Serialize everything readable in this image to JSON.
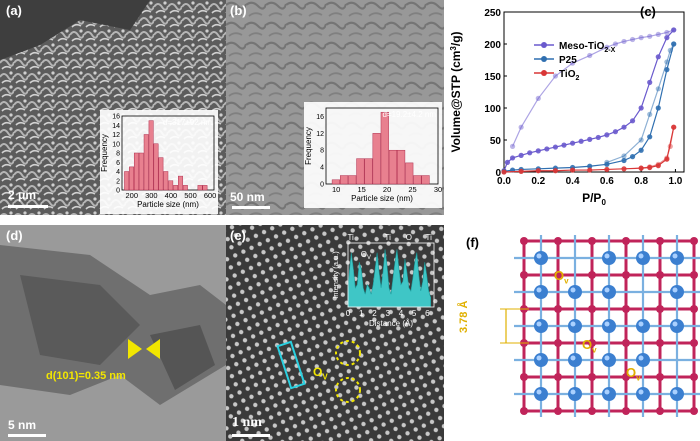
{
  "panels": {
    "a": {
      "label": "(a)",
      "scale_bar": "2 μm",
      "inset": {
        "annotation": "d=317±92 nm",
        "xlabel": "Particle size (nm)",
        "ylabel": "Frequency",
        "xticks": [
          "200",
          "300",
          "400",
          "500",
          "600"
        ],
        "yticks": [
          "0",
          "2",
          "4",
          "6",
          "8",
          "10",
          "12",
          "14",
          "16"
        ]
      }
    },
    "b": {
      "label": "(b)",
      "scale_bar": "50 nm",
      "inset": {
        "annotation": "d=19.2±4.2 nm",
        "xlabel": "Particle size (nm)",
        "ylabel": "Frequency",
        "xticks": [
          "10",
          "15",
          "20",
          "25",
          "30"
        ],
        "yticks": [
          "0",
          "4",
          "8",
          "12",
          "16"
        ]
      }
    },
    "c": {
      "label": "(c)",
      "xlabel": "P/P",
      "xlabel_sub": "0",
      "ylabel": "Volume@STP (cm",
      "ylabel_sup": "3",
      "ylabel_end": "/g)",
      "xticks": [
        "0.0",
        "0.2",
        "0.4",
        "0.6",
        "0.8",
        "1.0"
      ],
      "yticks": [
        "0",
        "50",
        "100",
        "150",
        "200",
        "250"
      ],
      "legend": [
        {
          "name": "Meso-TiO",
          "sub": "2-X",
          "color": "#6a5acd"
        },
        {
          "name": "P25",
          "sub": "",
          "color": "#2f6fb0"
        },
        {
          "name": "TiO",
          "sub": "2",
          "color": "#d93636"
        }
      ]
    },
    "d": {
      "label": "(d)",
      "scale_bar": "5 nm",
      "lattice": "d(101)=0.35 nm"
    },
    "e": {
      "label": "(e)",
      "scale_bar": "1 nm",
      "ov_label": "O",
      "ov_sub": "V",
      "inset": {
        "xlabel": "Distance (Å)",
        "ylabel": "Intensity (a.u.)",
        "xticks": [
          "0",
          "1",
          "2",
          "3",
          "4",
          "5",
          "6"
        ],
        "atoms": [
          "Ti",
          "Ti",
          "O",
          "Ti"
        ],
        "ov_label": "O",
        "ov_sub": "V"
      }
    },
    "f": {
      "label": "(f)",
      "spacing": "3.78 Å",
      "ov_label": "O",
      "ov_sub": "v"
    }
  },
  "chart_data": [
    {
      "panel": "a-inset",
      "type": "bar",
      "title": "",
      "annotation": "d=317±92 nm",
      "xlabel": "Particle size (nm)",
      "ylabel": "Frequency",
      "xlim": [
        150,
        620
      ],
      "ylim": [
        0,
        16
      ],
      "bin_width": 25,
      "x": [
        175,
        200,
        225,
        250,
        275,
        300,
        325,
        350,
        375,
        400,
        425,
        450,
        475,
        500,
        525,
        550,
        575
      ],
      "values": [
        4,
        5,
        8,
        8,
        12,
        15,
        10,
        7,
        4,
        2,
        1,
        3,
        1,
        0,
        0,
        1,
        1
      ]
    },
    {
      "panel": "b-inset",
      "type": "bar",
      "title": "",
      "annotation": "d=19.2±4.2 nm",
      "xlabel": "Particle size (nm)",
      "ylabel": "Frequency",
      "xlim": [
        8,
        30
      ],
      "ylim": [
        0,
        18
      ],
      "bin_width": 1.6,
      "x": [
        10,
        11.6,
        13.2,
        14.8,
        16.4,
        18,
        19.6,
        21.2,
        22.8,
        24.4,
        26,
        27.6
      ],
      "values": [
        1,
        2,
        2,
        6,
        6,
        12,
        17,
        8,
        8,
        5,
        2,
        2
      ]
    },
    {
      "panel": "c",
      "type": "line",
      "title": "",
      "xlabel": "P/P0",
      "ylabel": "Volume@STP (cm3/g)",
      "xlim": [
        0,
        1.05
      ],
      "ylim": [
        0,
        250
      ],
      "series": [
        {
          "name": "Meso-TiO2-X",
          "color": "#6a5acd",
          "adsorption": {
            "x": [
              0.0,
              0.02,
              0.05,
              0.1,
              0.15,
              0.2,
              0.25,
              0.3,
              0.35,
              0.4,
              0.45,
              0.5,
              0.55,
              0.6,
              0.65,
              0.7,
              0.75,
              0.8,
              0.85,
              0.9,
              0.95,
              0.99
            ],
            "y": [
              2,
              15,
              22,
              26,
              30,
              33,
              36,
              39,
              42,
              45,
              48,
              51,
              54,
              58,
              63,
              70,
              80,
              100,
              140,
              180,
              210,
              222
            ]
          },
          "desorption": {
            "x": [
              0.99,
              0.95,
              0.9,
              0.85,
              0.8,
              0.75,
              0.7,
              0.65,
              0.6,
              0.5,
              0.4,
              0.3,
              0.2,
              0.1,
              0.05
            ],
            "y": [
              222,
              218,
              215,
              212,
              210,
              207,
              204,
              200,
              195,
              182,
              170,
              150,
              115,
              70,
              40
            ]
          }
        },
        {
          "name": "P25",
          "color": "#2f6fb0",
          "adsorption": {
            "x": [
              0.0,
              0.05,
              0.1,
              0.2,
              0.3,
              0.4,
              0.5,
              0.6,
              0.7,
              0.75,
              0.8,
              0.85,
              0.9,
              0.95,
              0.99
            ],
            "y": [
              1,
              3,
              4,
              5,
              6,
              7,
              9,
              12,
              18,
              24,
              34,
              55,
              100,
              160,
              200
            ]
          },
          "desorption": {
            "x": [
              0.99,
              0.97,
              0.95,
              0.9,
              0.85,
              0.8,
              0.7,
              0.6
            ],
            "y": [
              200,
              190,
              172,
              130,
              90,
              50,
              25,
              15
            ]
          }
        },
        {
          "name": "TiO2",
          "color": "#d93636",
          "adsorption": {
            "x": [
              0.0,
              0.1,
              0.2,
              0.3,
              0.4,
              0.5,
              0.6,
              0.7,
              0.8,
              0.85,
              0.9,
              0.95,
              0.99
            ],
            "y": [
              0,
              1,
              2,
              2,
              3,
              3,
              4,
              5,
              6,
              7,
              10,
              20,
              70
            ]
          },
          "desorption": {
            "x": [
              0.99,
              0.97,
              0.95,
              0.9,
              0.85,
              0.8
            ],
            "y": [
              70,
              40,
              22,
              12,
              8,
              6
            ]
          }
        }
      ]
    },
    {
      "panel": "e-inset",
      "type": "area",
      "title": "",
      "xlabel": "Distance (Å)",
      "ylabel": "Intensity (a.u.)",
      "xlim": [
        0,
        6.5
      ],
      "ylim": [
        0,
        1
      ],
      "x": [
        0,
        0.1,
        0.25,
        0.4,
        0.55,
        0.7,
        0.85,
        1.0,
        1.15,
        1.3,
        1.45,
        1.6,
        1.75,
        1.9,
        2.05,
        2.2,
        2.35,
        2.5,
        2.65,
        2.8,
        2.95,
        3.1,
        3.25,
        3.4,
        3.55,
        3.7,
        3.85,
        4.0,
        4.15,
        4.3,
        4.45,
        4.6,
        4.75,
        4.9,
        5.05,
        5.2,
        5.35,
        5.5,
        5.65,
        5.8,
        5.95,
        6.1,
        6.25
      ],
      "values": [
        0.25,
        0.55,
        0.85,
        0.6,
        0.3,
        0.35,
        0.7,
        0.6,
        0.3,
        0.2,
        0.35,
        0.3,
        0.2,
        0.35,
        0.6,
        0.85,
        0.55,
        0.3,
        0.55,
        0.9,
        0.65,
        0.3,
        0.2,
        0.45,
        0.7,
        0.9,
        0.6,
        0.35,
        0.4,
        0.75,
        0.55,
        0.3,
        0.25,
        0.45,
        0.7,
        0.85,
        0.5,
        0.25,
        0.4,
        0.7,
        0.5,
        0.25,
        0.15
      ]
    }
  ]
}
